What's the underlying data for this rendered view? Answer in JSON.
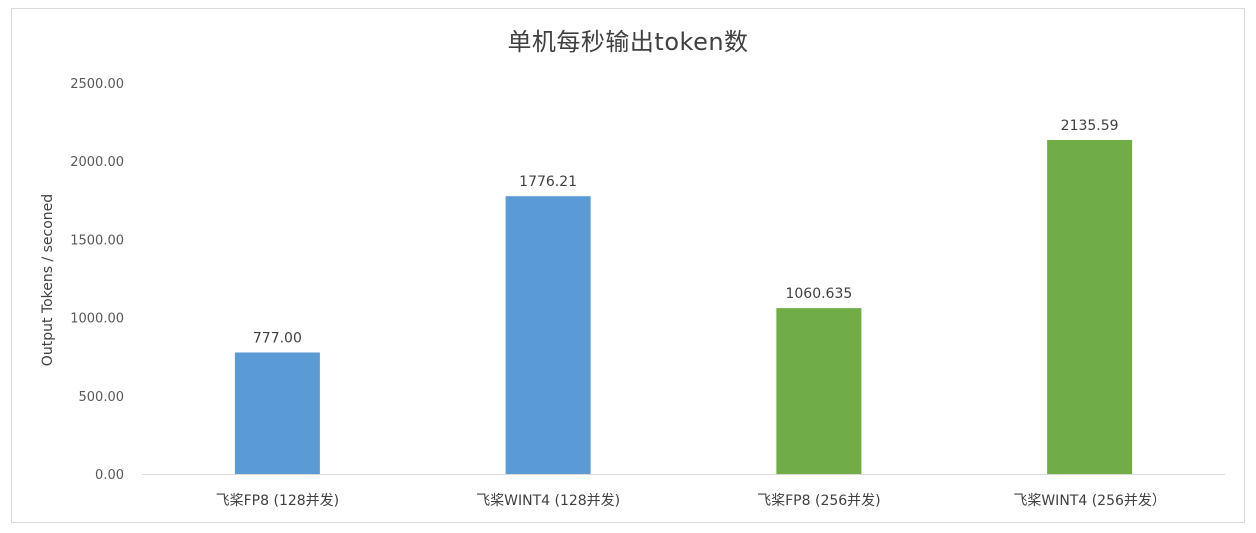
{
  "chart_data": {
    "type": "bar",
    "title": "单机每秒输出token数",
    "xlabel": "",
    "ylabel": "Output Tokens / seconed",
    "ylim": [
      0,
      2500
    ],
    "yticks": [
      "0.00",
      "500.00",
      "1000.00",
      "1500.00",
      "2000.00",
      "2500.00"
    ],
    "ytick_values": [
      0,
      500,
      1000,
      1500,
      2000,
      2500
    ],
    "categories": [
      "飞桨FP8 (128并发)",
      "飞桨WINT4 (128并发)",
      "飞桨FP8 (256并发)",
      "飞桨WINT4 (256并发）"
    ],
    "values": [
      777.0,
      1776.21,
      1060.635,
      2135.59
    ],
    "data_labels": [
      "777.00",
      "1776.21",
      "1060.635",
      "2135.59"
    ],
    "bar_colors": [
      "#5b9bd5",
      "#5b9bd5",
      "#70ad47",
      "#70ad47"
    ],
    "grid": false,
    "legend": "none"
  }
}
